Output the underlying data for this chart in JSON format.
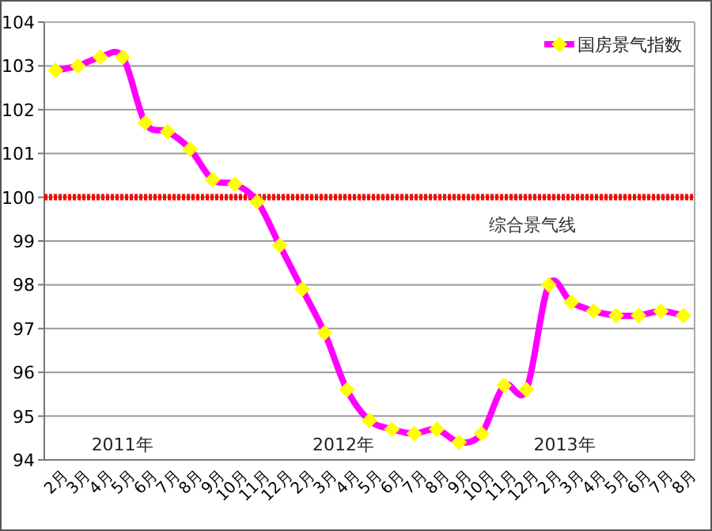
{
  "chart_data": {
    "type": "line",
    "categories": [
      "2月",
      "3月",
      "4月",
      "5月",
      "6月",
      "7月",
      "8月",
      "9月",
      "10月",
      "11月",
      "12月",
      "2月",
      "3月",
      "4月",
      "5月",
      "6月",
      "7月",
      "8月",
      "9月",
      "10月",
      "11月",
      "12月",
      "2月",
      "3月",
      "4月",
      "5月",
      "6月",
      "7月",
      "8月"
    ],
    "series": [
      {
        "name": "国房景气指数",
        "color": "#ff00ff",
        "values": [
          102.9,
          103.0,
          103.2,
          103.2,
          101.7,
          101.5,
          101.1,
          100.4,
          100.3,
          99.9,
          98.9,
          97.9,
          96.9,
          95.6,
          94.9,
          94.7,
          94.6,
          94.7,
          94.4,
          94.6,
          95.7,
          95.6,
          98.0,
          97.6,
          97.4,
          97.3,
          97.3,
          97.4,
          97.3
        ]
      }
    ],
    "ylim": [
      94,
      104
    ],
    "yticks": [
      94,
      95,
      96,
      97,
      98,
      99,
      100,
      101,
      102,
      103,
      104
    ],
    "ref_lines": [
      {
        "axis": "y",
        "value": 100,
        "label": "综合景气线",
        "color": "#ff0000",
        "line_style": "dotted"
      }
    ],
    "annotations": [
      "2011年",
      "2012年",
      "2013年"
    ],
    "grid": "y",
    "legend": "top right",
    "marker": "diamond",
    "line_style": "solid"
  }
}
